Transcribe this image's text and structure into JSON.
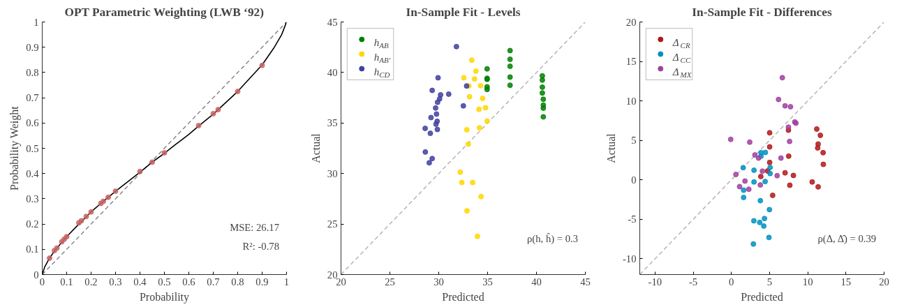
{
  "chart_data": [
    {
      "type": "scatter",
      "title": "OPT Parametric Weighting (LWB ‘92)",
      "xlabel": "Probability",
      "ylabel": "Probability Weight",
      "xlim": [
        0,
        1
      ],
      "ylim": [
        0,
        1
      ],
      "xticks": [
        0,
        0.1,
        0.2,
        0.3,
        0.4,
        0.5,
        0.6,
        0.7,
        0.8,
        0.9,
        1
      ],
      "yticks": [
        0,
        0.1,
        0.2,
        0.3,
        0.4,
        0.5,
        0.6,
        0.7,
        0.8,
        0.9,
        1
      ],
      "grid": false,
      "legend": false,
      "marker": "circle",
      "annotations": [
        "MSE: 26.17",
        "R²: -0.78"
      ],
      "series": [
        {
          "type": "line",
          "color": "#808080",
          "line_style": "dashed",
          "marker": "none",
          "x": [
            0,
            1
          ],
          "values": [
            0,
            1
          ]
        },
        {
          "type": "line",
          "color": "#000000",
          "line_style": "solid",
          "marker": "none",
          "x": [
            0,
            0.01,
            0.03,
            0.05,
            0.1,
            0.15,
            0.2,
            0.25,
            0.3,
            0.4,
            0.45,
            0.5,
            0.55,
            0.6,
            0.64,
            0.7,
            0.8,
            0.9,
            0.95,
            0.98,
            1
          ],
          "values": [
            0,
            0.03,
            0.065,
            0.093,
            0.15,
            0.2,
            0.248,
            0.29,
            0.33,
            0.405,
            0.445,
            0.48,
            0.518,
            0.555,
            0.588,
            0.635,
            0.725,
            0.83,
            0.9,
            0.95,
            1
          ]
        },
        {
          "color": "#c86464",
          "x": [
            0.03,
            0.05,
            0.06,
            0.08,
            0.09,
            0.1,
            0.15,
            0.16,
            0.18,
            0.2,
            0.24,
            0.25,
            0.27,
            0.3,
            0.4,
            0.45,
            0.5,
            0.64,
            0.7,
            0.72,
            0.8,
            0.9
          ],
          "values": [
            0.065,
            0.095,
            0.105,
            0.13,
            0.14,
            0.15,
            0.205,
            0.213,
            0.23,
            0.248,
            0.282,
            0.29,
            0.306,
            0.33,
            0.408,
            0.445,
            0.482,
            0.59,
            0.637,
            0.653,
            0.725,
            0.828
          ]
        }
      ]
    },
    {
      "type": "scatter",
      "title": "In-Sample Fit - Levels",
      "xlabel": "Predicted",
      "ylabel": "Actual",
      "xlim": [
        20,
        45
      ],
      "ylim": [
        20,
        45
      ],
      "xticks": [
        20,
        25,
        30,
        35,
        40,
        45
      ],
      "yticks": [
        20,
        25,
        30,
        35,
        40,
        45
      ],
      "grid": false,
      "legend": "top left",
      "marker": "circle",
      "annotations": [
        "ρ(h, ĥ) = 0.3"
      ],
      "series": [
        {
          "type": "line",
          "color": "#b0b0b0",
          "line_style": "dashed",
          "marker": "none",
          "x": [
            20,
            45
          ],
          "values": [
            20,
            45
          ]
        },
        {
          "name": "h$_{AB}$",
          "color": "#008000",
          "x": [
            34.95,
            34.95,
            34.95,
            34.95,
            34.95,
            37.3,
            37.3,
            37.3,
            37.3,
            37.3,
            40.6,
            40.6,
            40.6,
            40.6,
            40.7,
            40.7,
            40.7,
            40.7
          ],
          "values": [
            40.36,
            39.43,
            39.32,
            38.58,
            38.32,
            42.17,
            41.31,
            40.62,
            39.55,
            38.74,
            39.67,
            39.25,
            38.55,
            37.97,
            37.35,
            36.77,
            36.47,
            35.61
          ]
        },
        {
          "name": "h$_{AB'}$",
          "color": "#ffd700",
          "x": [
            33.38,
            33.8,
            32.57,
            33.66,
            33.08,
            34.28,
            33.15,
            34.49,
            34.12,
            34.79,
            34.95,
            34.17,
            32.87,
            33.03,
            32.2,
            32.36,
            33.47,
            34.33,
            32.89,
            33.96
          ],
          "values": [
            41.22,
            40.13,
            39.48,
            39.36,
            38.67,
            38.69,
            37.6,
            37.44,
            36.35,
            36.51,
            35.19,
            34.52,
            34.33,
            32.92,
            30.13,
            29.11,
            29.11,
            27.72,
            26.31,
            23.78
          ]
        },
        {
          "name": "h$_{CD}$",
          "color": "#4040a0",
          "x": [
            31.81,
            29.93,
            29.33,
            30.19,
            31.02,
            30.09,
            29.88,
            29.68,
            32.85,
            32.52,
            29.77,
            29.21,
            29.84,
            29.72,
            29.86,
            28.61,
            29.14,
            28.63,
            29.33,
            29.03
          ],
          "values": [
            42.56,
            39.48,
            38.23,
            37.79,
            37.86,
            37.39,
            37.05,
            36.49,
            38.67,
            36.7,
            35.89,
            35.54,
            35.17,
            34.89,
            34.36,
            34.47,
            33.98,
            32.13,
            31.48,
            31.06
          ]
        }
      ]
    },
    {
      "type": "scatter",
      "title": "In-Sample Fit - Differences",
      "xlabel": "Predicted",
      "ylabel": "Actual",
      "xlim": [
        -12,
        20
      ],
      "ylim": [
        -12,
        20
      ],
      "xticks": [
        -10,
        -5,
        0,
        5,
        10,
        15,
        20
      ],
      "yticks": [
        -10,
        -5,
        0,
        5,
        10,
        15,
        20
      ],
      "grid": false,
      "legend": "top left",
      "marker": "circle",
      "annotations": [
        "ρ(Δ, Δ̂) = 0.39"
      ],
      "series": [
        {
          "type": "line",
          "color": "#b0b0b0",
          "line_style": "dashed",
          "marker": "none",
          "x": [
            -12,
            20
          ],
          "values": [
            -12,
            20
          ]
        },
        {
          "name": "Δ$_{CR}$",
          "color": "#b01818",
          "x": [
            5.01,
            5.01,
            5.01,
            4.74,
            3.85,
            5.4,
            7.47,
            7.5,
            7.03,
            7.65,
            8.12,
            11.18,
            11.65,
            11.36,
            11.3,
            12.01,
            12.04,
            10.58,
            11.36
          ],
          "values": [
            5.96,
            4.18,
            2.2,
            1.13,
            0.42,
            -1.96,
            6.29,
            3.0,
            0.89,
            -0.68,
            0.56,
            6.44,
            5.64,
            4.54,
            4.04,
            3.44,
            1.96,
            -0.27,
            -0.89
          ]
        },
        {
          "name": "Δ$_{CC}$",
          "color": "#0090c0",
          "x": [
            3.88,
            4.45,
            3.88,
            1.54,
            2.96,
            5.07,
            5.07,
            2.96,
            4.42,
            1.6,
            1.6,
            3.79,
            4.98,
            2.94,
            3.71,
            4.33,
            4.24,
            4.92,
            2.88
          ],
          "values": [
            3.44,
            3.47,
            3.0,
            1.54,
            1.22,
            1.57,
            0.8,
            -0.27,
            -0.21,
            -1.31,
            -2.23,
            -2.64,
            -3.77,
            -5.19,
            -5.4,
            -4.9,
            -5.85,
            -7.3,
            -8.13
          ]
        },
        {
          "name": "Δ$_{MX}$",
          "color": "#a040a0",
          "x": [
            6.67,
            6.17,
            7.03,
            7.74,
            8.3,
            8.45,
            7.47,
            7.62,
            -0.09,
            2.4,
            3.08,
            3.56,
            6.49,
            4.06,
            5.99,
            0.59,
            1.78,
            1.07,
            2.28,
            3.79
          ],
          "values": [
            12.94,
            10.18,
            9.38,
            9.26,
            7.33,
            7.18,
            6.68,
            4.87,
            5.13,
            4.78,
            3.15,
            2.76,
            2.76,
            1.1,
            0.53,
            0.68,
            -0.15,
            -0.86,
            -1.19,
            -0.65
          ]
        }
      ]
    }
  ]
}
